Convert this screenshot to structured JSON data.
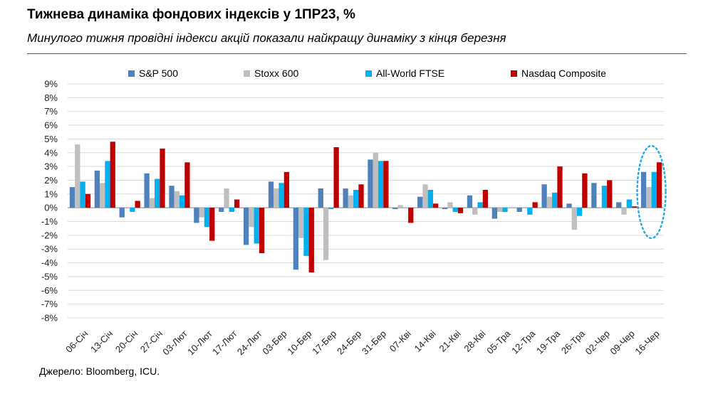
{
  "header": {
    "title": "Тижнева динаміка фондових індексів у 1ПР23, %",
    "subtitle": "Минулого тижня провідні індекси акцій  показали найкращу динаміку з кінця березня"
  },
  "source": "Джерело: Bloomberg, ICU.",
  "chart_data": {
    "type": "bar",
    "categories": [
      "06-Січ",
      "13-Січ",
      "20-Січ",
      "27-Січ",
      "03-Лют",
      "10-Лют",
      "17-Лют",
      "24-Лют",
      "03-Бер",
      "10-Бер",
      "17-Бер",
      "24-Бер",
      "31-Бер",
      "07-Кві",
      "14-Кві",
      "21-Кві",
      "28-Кві",
      "05-Тра",
      "12-Тра",
      "19-Тра",
      "26-Тра",
      "02-Чер",
      "09-Чер",
      "16-Чер"
    ],
    "y_tick_labels": [
      "9%",
      "8%",
      "7%",
      "6%",
      "5%",
      "4%",
      "3%",
      "2%",
      "1%",
      "0%",
      "-1%",
      "-2%",
      "-3%",
      "-4%",
      "-5%",
      "-6%",
      "-7%",
      "-8%"
    ],
    "ylim": [
      -8,
      9
    ],
    "grid": true,
    "legend_position": "top",
    "highlight": "ellipse around 16-Чер",
    "series": [
      {
        "name": "S&P 500",
        "color": "#4f81bd",
        "values": [
          1.5,
          2.7,
          -0.7,
          2.5,
          1.6,
          -1.1,
          -0.3,
          -2.7,
          1.9,
          -4.5,
          1.4,
          1.4,
          3.5,
          -0.1,
          0.8,
          -0.1,
          0.9,
          -0.8,
          -0.3,
          1.7,
          0.3,
          1.8,
          0.4,
          2.6
        ]
      },
      {
        "name": "Stoxx 600",
        "color": "#bfbfbf",
        "values": [
          4.6,
          1.8,
          0.0,
          0.7,
          1.2,
          -0.7,
          1.4,
          -1.4,
          1.4,
          -2.2,
          -3.8,
          0.9,
          4.0,
          0.2,
          1.7,
          0.4,
          -0.5,
          -0.3,
          0.0,
          0.8,
          -1.6,
          0.0,
          -0.5,
          1.5
        ]
      },
      {
        "name": "All-World FTSE",
        "color": "#00b0f0",
        "values": [
          1.9,
          3.4,
          -0.3,
          2.1,
          0.9,
          -1.4,
          -0.3,
          -2.6,
          1.8,
          -3.5,
          -0.1,
          1.3,
          3.4,
          0.0,
          1.3,
          -0.3,
          0.4,
          -0.3,
          -0.5,
          1.1,
          -0.6,
          1.6,
          0.6,
          2.6
        ]
      },
      {
        "name": "Nasdaq Composite",
        "color": "#c00000",
        "values": [
          1.0,
          4.8,
          0.5,
          4.3,
          3.3,
          -2.4,
          0.6,
          -3.3,
          2.6,
          -4.7,
          4.4,
          1.7,
          3.4,
          -1.1,
          0.3,
          -0.4,
          1.3,
          0.0,
          0.4,
          3.0,
          2.5,
          2.0,
          0.1,
          3.3
        ]
      }
    ]
  }
}
